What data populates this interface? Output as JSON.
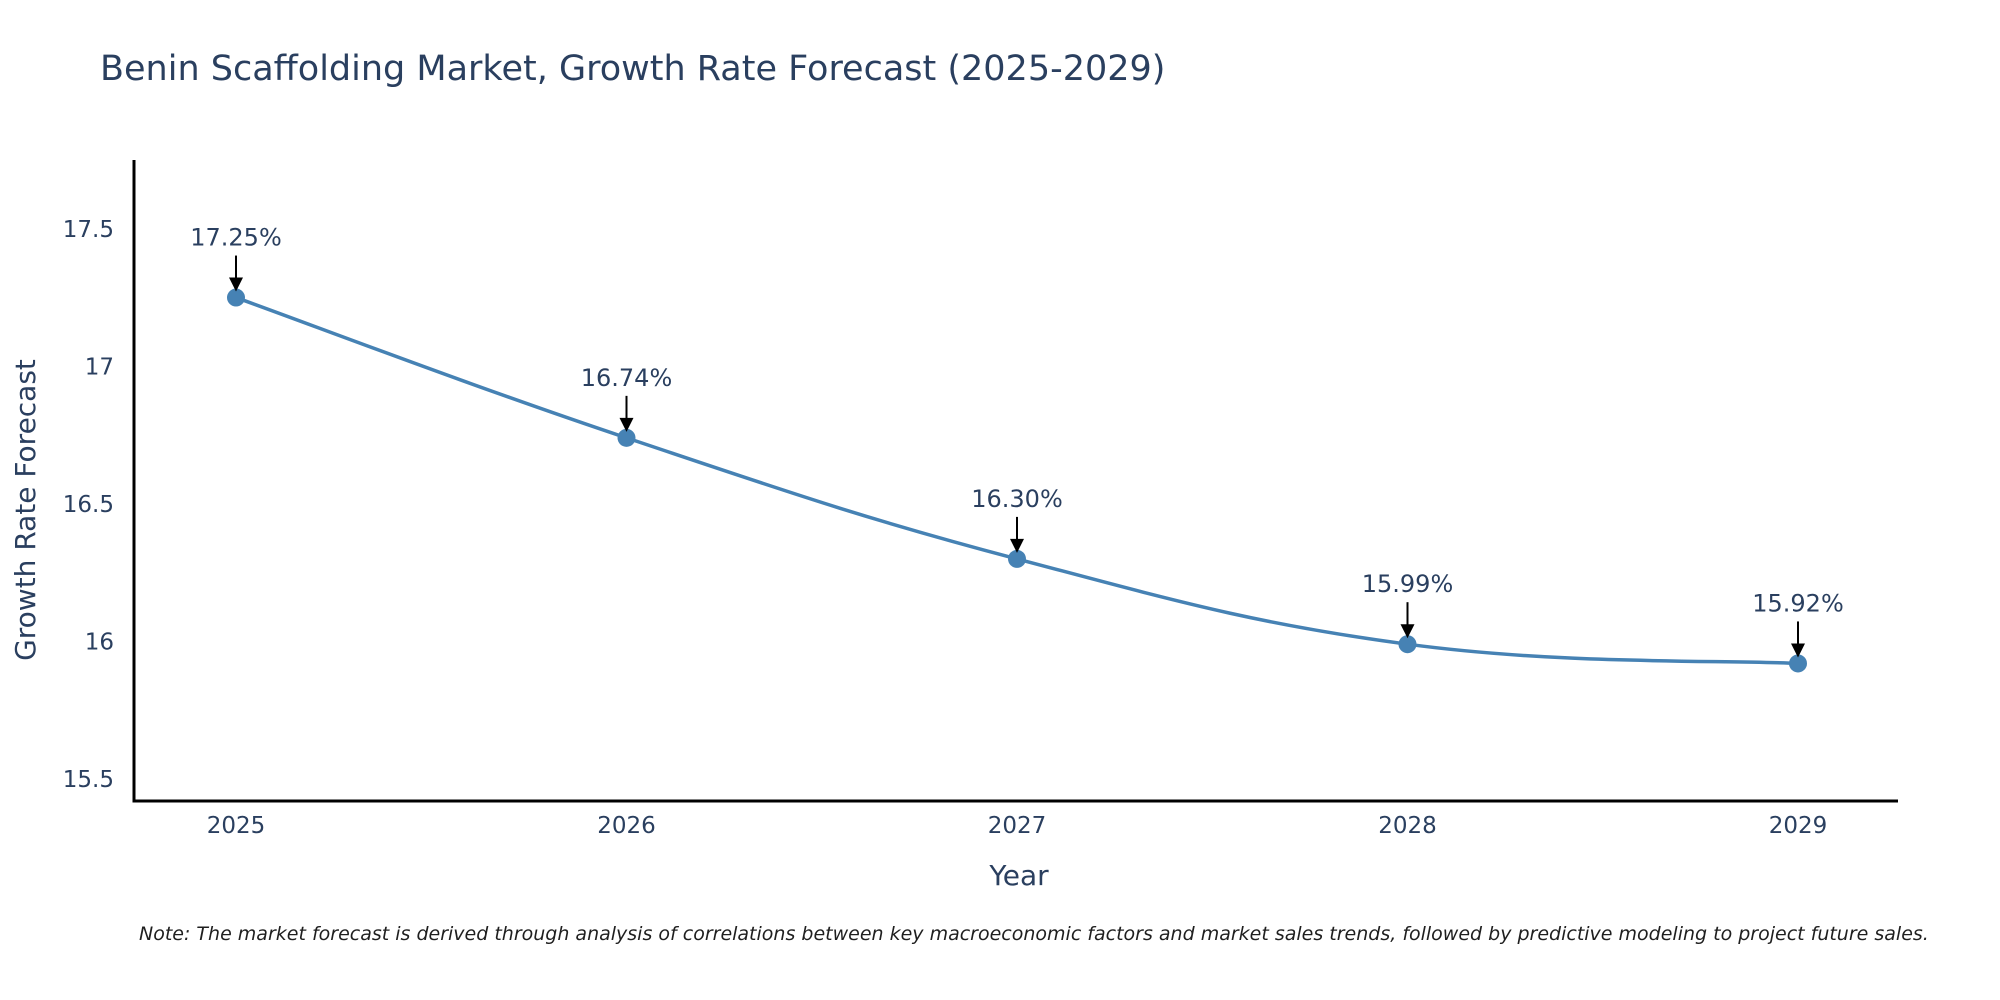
{
  "chart_data": {
    "type": "line",
    "title": "Benin Scaffolding Market, Growth Rate Forecast (2025-2029)",
    "xlabel": "Year",
    "ylabel": "Growth Rate Forecast",
    "categories": [
      "2025",
      "2026",
      "2027",
      "2028",
      "2029"
    ],
    "values": [
      17.25,
      16.74,
      16.3,
      15.99,
      15.92
    ],
    "data_labels": [
      "17.25%",
      "16.74%",
      "16.30%",
      "15.99%",
      "15.92%"
    ],
    "ylim": [
      15.42,
      17.75
    ],
    "yticks": [
      15.5,
      16,
      16.5,
      17,
      17.5
    ],
    "ytick_labels": [
      "15.5",
      "16",
      "16.5",
      "17",
      "17.5"
    ],
    "grid": false,
    "line_color": "#4682b4",
    "note": "Note: The market forecast is derived through analysis of correlations between key macroeconomic factors and market sales trends, followed by predictive modeling to project future sales."
  }
}
